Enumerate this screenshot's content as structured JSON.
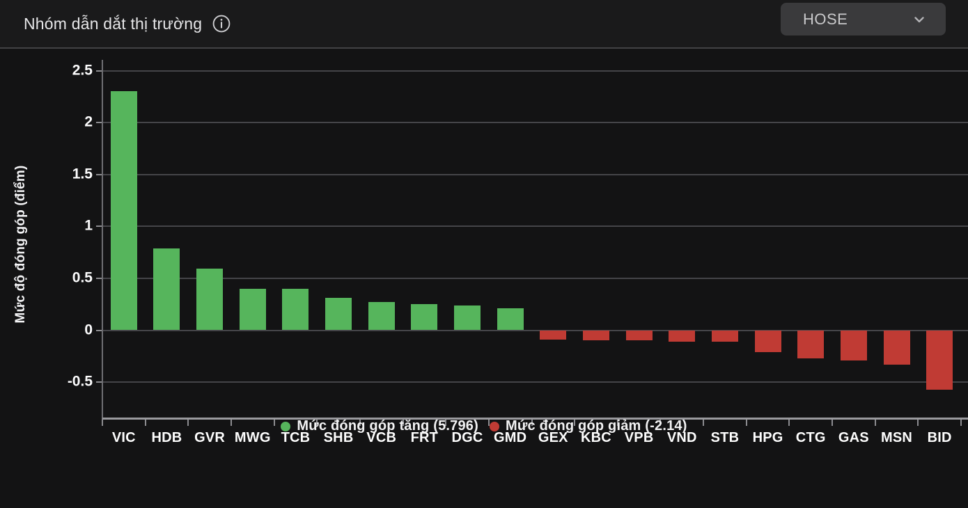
{
  "header": {
    "title": "Nhóm dẫn dắt thị trường",
    "info_icon": "info-icon",
    "exchange_selected": "HOSE",
    "chevron_icon": "chevron-down-icon"
  },
  "chart_data": {
    "type": "bar",
    "title": "Nhóm dẫn dắt thị trường",
    "xlabel": "",
    "ylabel": "Mức độ đóng góp (điểm)",
    "categories": [
      "VIC",
      "HDB",
      "GVR",
      "MWG",
      "TCB",
      "SHB",
      "VCB",
      "FRT",
      "DGC",
      "GMD",
      "GEX",
      "KBC",
      "VPB",
      "VND",
      "STB",
      "HPG",
      "CTG",
      "GAS",
      "MSN",
      "BID"
    ],
    "values": [
      2.3,
      0.79,
      0.59,
      0.4,
      0.4,
      0.31,
      0.27,
      0.25,
      0.24,
      0.21,
      -0.09,
      -0.1,
      -0.1,
      -0.11,
      -0.11,
      -0.21,
      -0.27,
      -0.29,
      -0.33,
      -0.57
    ],
    "ylim": [
      -0.85,
      2.5
    ],
    "yticks": [
      2.5,
      2,
      1.5,
      1,
      0.5,
      0,
      -0.5
    ],
    "grid": true,
    "legend_position": "bottom",
    "positive_color": "#56b55c",
    "negative_color": "#c03b34",
    "positive_total": 5.796,
    "negative_total": -2.14,
    "legend": [
      {
        "label": "Mức đóng góp tăng (5.796)",
        "color": "#56b55c"
      },
      {
        "label": "Mức đóng góp giảm (-2.14)",
        "color": "#c03b34"
      }
    ]
  }
}
